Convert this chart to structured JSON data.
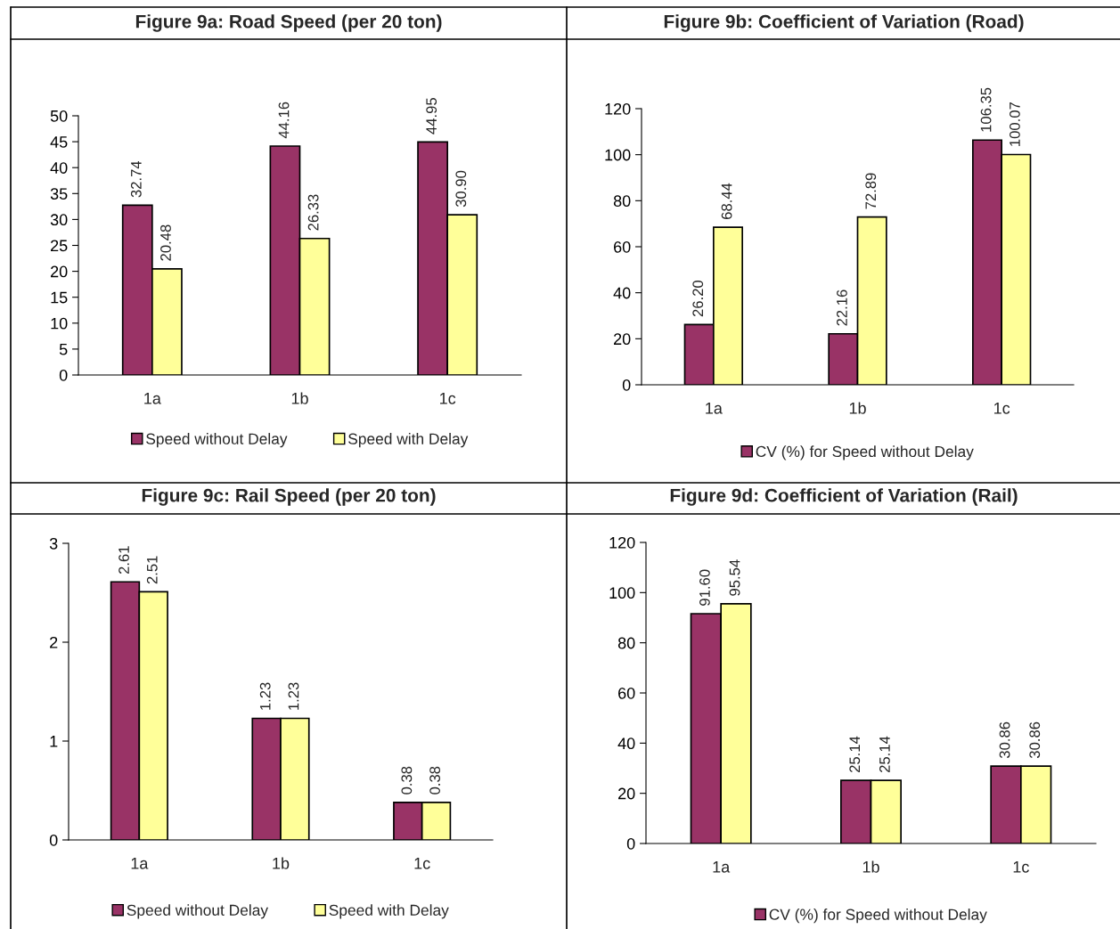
{
  "chart_data": [
    {
      "type": "bar",
      "title": "Figure 9a: Road Speed (per 20 ton)",
      "categories": [
        "1a",
        "1b",
        "1c"
      ],
      "ylim": [
        0,
        50
      ],
      "yticks": [
        0,
        5,
        10,
        15,
        20,
        25,
        30,
        35,
        40,
        45,
        50
      ],
      "grid": false,
      "legend": "bottom",
      "series": [
        {
          "name": "Speed without Delay",
          "color": "#993366",
          "values": [
            32.74,
            44.16,
            44.95
          ],
          "value_labels": [
            "32.74",
            "44.16",
            "44.95"
          ]
        },
        {
          "name": "Speed with Delay",
          "color": "#ffff99",
          "values": [
            20.48,
            26.33,
            30.9
          ],
          "value_labels": [
            "20.48",
            "26.33",
            "30.90"
          ]
        }
      ]
    },
    {
      "type": "bar",
      "title": "Figure 9b: Coefficient of Variation (Road)",
      "categories": [
        "1a",
        "1b",
        "1c"
      ],
      "ylim": [
        0,
        120
      ],
      "yticks": [
        0,
        20,
        40,
        60,
        80,
        100,
        120
      ],
      "grid": false,
      "legend": "bottom",
      "series": [
        {
          "name": "CV (%) for Speed without Delay",
          "color": "#993366",
          "values": [
            26.2,
            22.16,
            106.35
          ],
          "value_labels": [
            "26.20",
            "22.16",
            "106.35"
          ]
        },
        {
          "color": "#ffff99",
          "values": [
            68.44,
            72.89,
            100.07
          ],
          "value_labels": [
            "68.44",
            "72.89",
            "100.07"
          ]
        }
      ]
    },
    {
      "type": "bar",
      "title": "Figure 9c: Rail Speed (per 20 ton)",
      "categories": [
        "1a",
        "1b",
        "1c"
      ],
      "ylim": [
        0,
        3
      ],
      "yticks": [
        0,
        1,
        2,
        3
      ],
      "grid": false,
      "legend": "bottom",
      "series": [
        {
          "name": "Speed without Delay",
          "color": "#993366",
          "values": [
            2.61,
            1.23,
            0.38
          ],
          "value_labels": [
            "2.61",
            "1.23",
            "0.38"
          ]
        },
        {
          "name": "Speed with Delay",
          "color": "#ffff99",
          "values": [
            2.51,
            1.23,
            0.38
          ],
          "value_labels": [
            "2.51",
            "1.23",
            "0.38"
          ]
        }
      ]
    },
    {
      "type": "bar",
      "title": "Figure 9d: Coefficient of Variation (Rail)",
      "categories": [
        "1a",
        "1b",
        "1c"
      ],
      "ylim": [
        0,
        120
      ],
      "yticks": [
        0,
        20,
        40,
        60,
        80,
        100,
        120
      ],
      "grid": false,
      "legend": "bottom",
      "series": [
        {
          "name": "CV (%) for Speed without Delay",
          "color": "#993366",
          "values": [
            91.6,
            25.14,
            30.86
          ],
          "value_labels": [
            "91.60",
            "25.14",
            "30.86"
          ]
        },
        {
          "color": "#ffff99",
          "values": [
            95.54,
            25.14,
            30.86
          ],
          "value_labels": [
            "95.54",
            "25.14",
            "30.86"
          ]
        }
      ]
    }
  ]
}
